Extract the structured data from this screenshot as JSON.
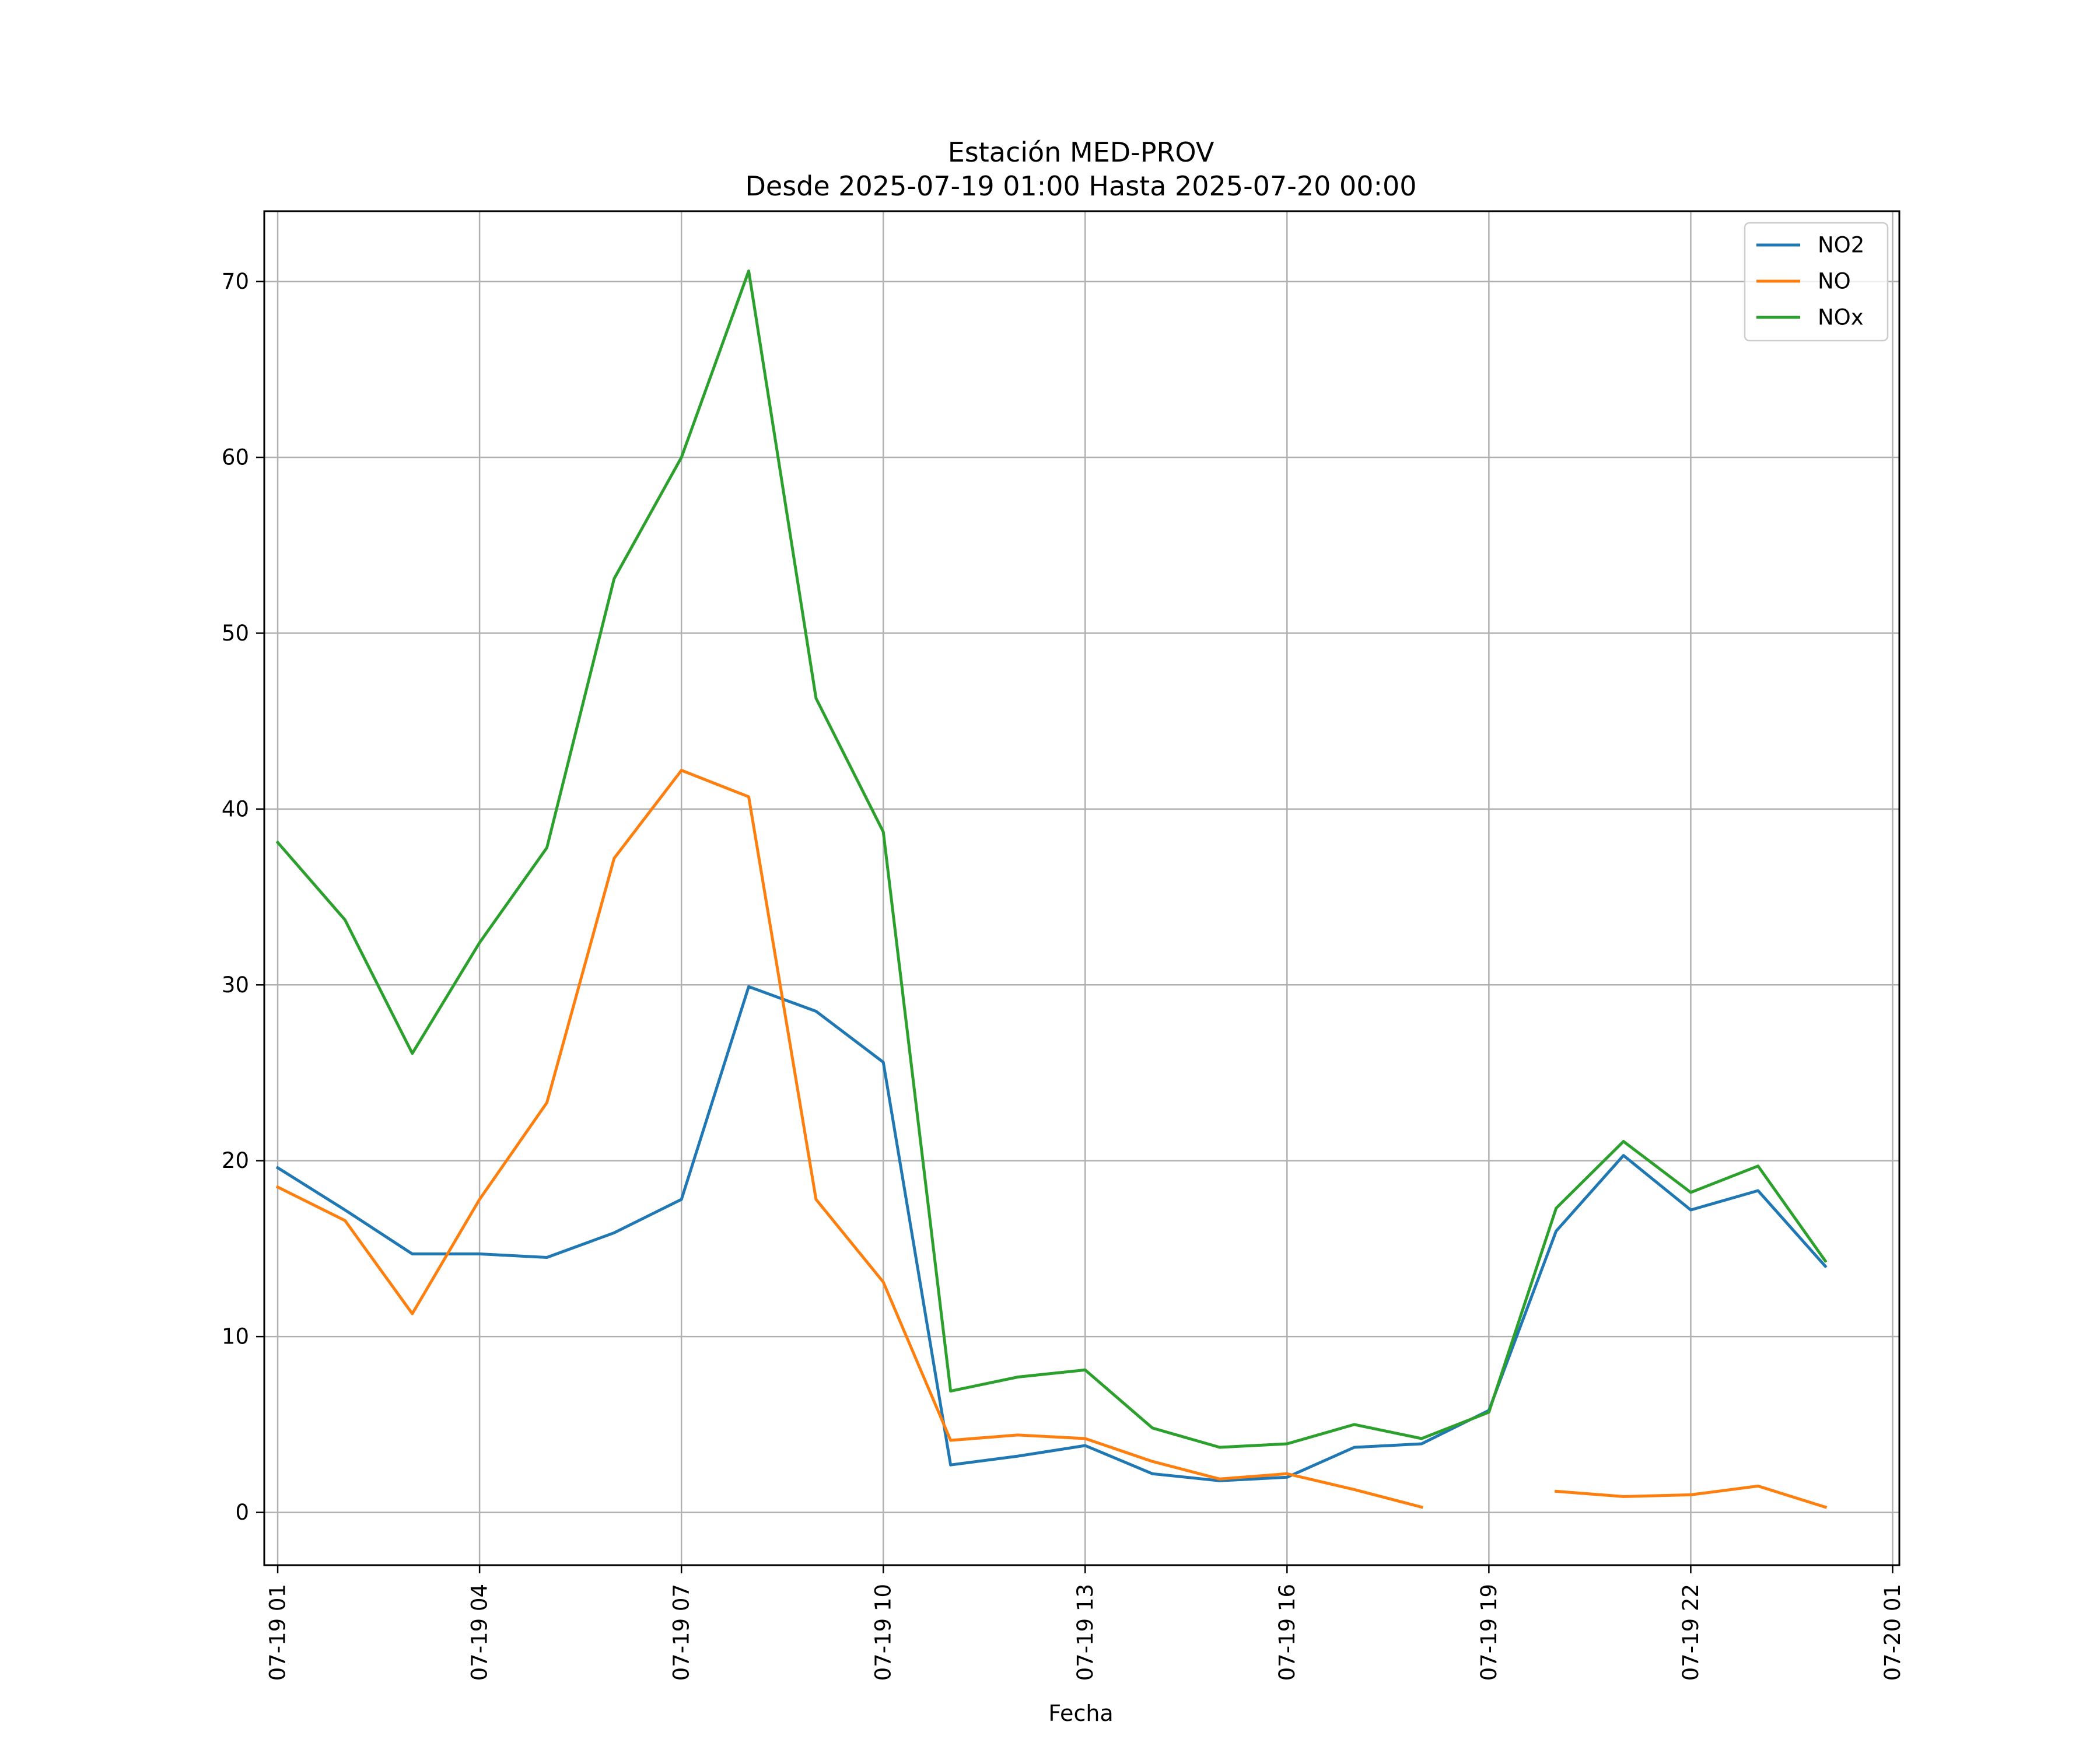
{
  "chart_data": {
    "type": "line",
    "title": "Estación MED-PROV",
    "subtitle": "Desde 2025-07-19 01:00 Hasta 2025-07-20 00:00",
    "xlabel": "Fecha",
    "ylabel": "",
    "x_unit": "hour",
    "x": [
      "07-19 01",
      "07-19 02",
      "07-19 03",
      "07-19 04",
      "07-19 05",
      "07-19 06",
      "07-19 07",
      "07-19 08",
      "07-19 09",
      "07-19 10",
      "07-19 11",
      "07-19 12",
      "07-19 13",
      "07-19 14",
      "07-19 15",
      "07-19 16",
      "07-19 17",
      "07-19 18",
      "07-19 19",
      "07-19 20",
      "07-19 21",
      "07-19 22",
      "07-19 23",
      "07-20 00"
    ],
    "x_ticks": [
      "07-19 01",
      "07-19 04",
      "07-19 07",
      "07-19 10",
      "07-19 13",
      "07-19 16",
      "07-19 19",
      "07-19 22",
      "07-20 01"
    ],
    "xlim": [
      "07-19 00",
      "07-20 01"
    ],
    "ylim": [
      -3,
      74
    ],
    "y_ticks": [
      0,
      10,
      20,
      30,
      40,
      50,
      60,
      70
    ],
    "grid": true,
    "legend_position": "top-right",
    "series": [
      {
        "name": "NO2",
        "color": "#1f77b4",
        "values": [
          19.6,
          17.2,
          14.7,
          14.7,
          14.5,
          15.9,
          17.8,
          29.9,
          28.5,
          25.6,
          2.7,
          3.2,
          3.8,
          2.2,
          1.8,
          2.0,
          3.7,
          3.9,
          5.8,
          16.0,
          20.3,
          17.2,
          18.3,
          14.0
        ]
      },
      {
        "name": "NO",
        "color": "#ff7f0e",
        "values": [
          18.5,
          16.6,
          11.3,
          17.8,
          23.3,
          37.2,
          42.2,
          40.7,
          17.8,
          13.1,
          4.1,
          4.4,
          4.2,
          2.9,
          1.9,
          2.2,
          1.3,
          0.3,
          null,
          1.2,
          0.9,
          1.0,
          1.5,
          0.3
        ]
      },
      {
        "name": "NOx",
        "color": "#2ca02c",
        "values": [
          38.1,
          33.7,
          26.1,
          32.4,
          37.8,
          53.1,
          60.0,
          70.6,
          46.3,
          38.7,
          6.9,
          7.7,
          8.1,
          4.8,
          3.7,
          3.9,
          5.0,
          4.2,
          5.7,
          17.3,
          21.1,
          18.2,
          19.7,
          14.3
        ]
      }
    ]
  }
}
